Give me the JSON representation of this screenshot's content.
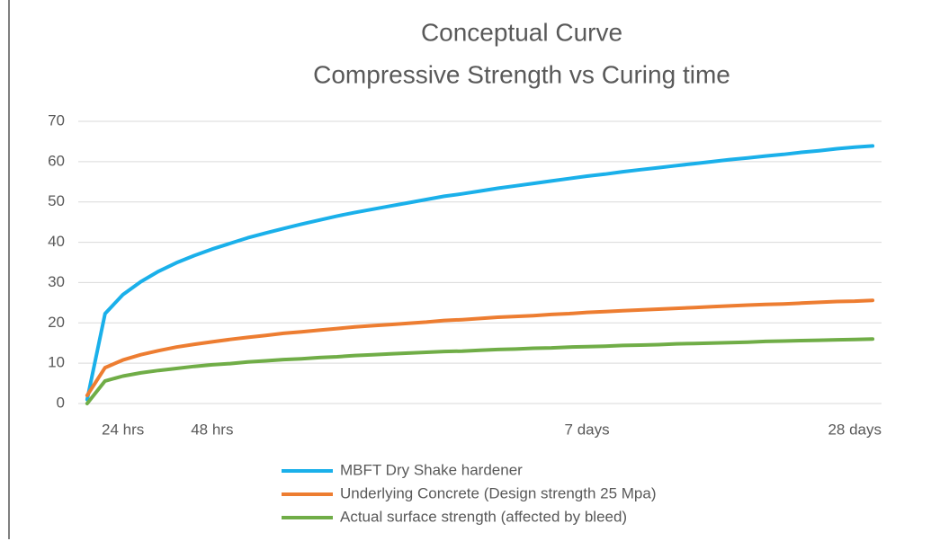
{
  "chart_data": {
    "type": "line",
    "title": "Conceptual Curve",
    "subtitle": "Compressive Strength vs Curing time",
    "categories": [
      null,
      null,
      "24 hrs",
      null,
      null,
      null,
      null,
      "48 hrs",
      null,
      null,
      null,
      null,
      null,
      null,
      null,
      null,
      null,
      null,
      null,
      null,
      null,
      null,
      null,
      null,
      null,
      null,
      null,
      null,
      "7 days",
      null,
      null,
      null,
      null,
      null,
      null,
      null,
      null,
      null,
      null,
      null,
      null,
      null,
      null,
      "28 days",
      null
    ],
    "series": [
      {
        "name": "MBFT Dry Shake hardener",
        "color": "#1ab0ea",
        "values": [
          1,
          22.3,
          27,
          30.2,
          32.8,
          34.9,
          36.7,
          38.3,
          39.7,
          41.1,
          42.3,
          43.4,
          44.5,
          45.5,
          46.5,
          47.4,
          48.2,
          49.0,
          49.8,
          50.6,
          51.4,
          52.0,
          52.7,
          53.4,
          54.0,
          54.6,
          55.2,
          55.8,
          56.4,
          56.9,
          57.5,
          58.0,
          58.5,
          59.0,
          59.5,
          60.0,
          60.5,
          60.9,
          61.4,
          61.8,
          62.3,
          62.7,
          63.2,
          63.6,
          63.9
        ]
      },
      {
        "name": "Underlying Concrete (Design strength 25 Mpa)",
        "color": "#ed7d31",
        "values": [
          2,
          8.9,
          10.8,
          12.1,
          13.1,
          14.0,
          14.7,
          15.3,
          15.9,
          16.4,
          16.9,
          17.4,
          17.8,
          18.2,
          18.6,
          19.0,
          19.3,
          19.6,
          19.9,
          20.2,
          20.6,
          20.8,
          21.1,
          21.4,
          21.6,
          21.8,
          22.1,
          22.3,
          22.6,
          22.8,
          23.0,
          23.2,
          23.4,
          23.6,
          23.8,
          24.0,
          24.2,
          24.4,
          24.6,
          24.7,
          24.9,
          25.1,
          25.3,
          25.4,
          25.6
        ]
      },
      {
        "name": "Actual surface strength (affected by bleed)",
        "color": "#70ad47",
        "values": [
          0,
          5.6,
          6.8,
          7.6,
          8.2,
          8.7,
          9.2,
          9.6,
          9.9,
          10.3,
          10.6,
          10.9,
          11.1,
          11.4,
          11.6,
          11.9,
          12.1,
          12.3,
          12.5,
          12.7,
          12.9,
          13.0,
          13.2,
          13.4,
          13.5,
          13.7,
          13.8,
          14.0,
          14.1,
          14.2,
          14.4,
          14.5,
          14.6,
          14.8,
          14.9,
          15.0,
          15.1,
          15.2,
          15.4,
          15.5,
          15.6,
          15.7,
          15.8,
          15.9,
          16.0
        ]
      }
    ],
    "ylim": [
      0,
      70
    ],
    "yticks": [
      0,
      10,
      20,
      30,
      40,
      50,
      60,
      70
    ],
    "grid": true,
    "legend": "bottom"
  }
}
